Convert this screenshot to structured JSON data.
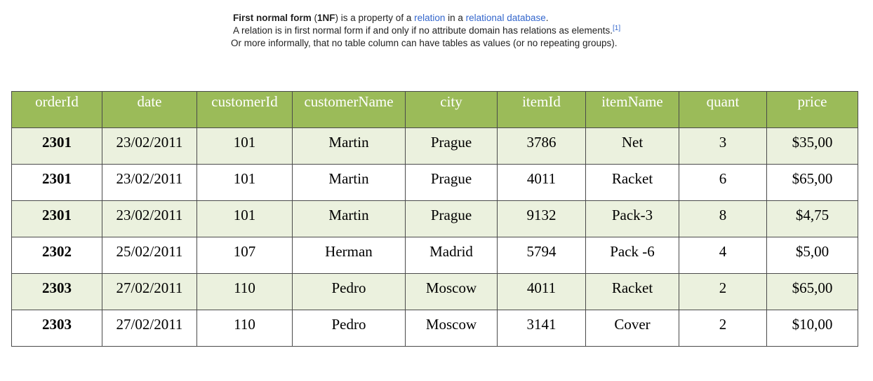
{
  "intro": {
    "line1": {
      "term": "First normal form",
      "open_paren": " (",
      "abbr": "1NF",
      "middle": ") is a property of a ",
      "link_relation": "relation",
      "in_a": " in a ",
      "link_relational_database": "relational database",
      "end": "."
    },
    "line2": {
      "text": "A relation is in first normal form if and only if no attribute domain has relations as elements.",
      "citation": "[1]"
    },
    "line3": {
      "text": "Or more informally, that no table column can have tables as values (or no repeating groups)."
    }
  },
  "table": {
    "headers": [
      "orderId",
      "date",
      "customerId",
      "customerName",
      "city",
      "itemId",
      "itemName",
      "quant",
      "price"
    ],
    "rows": [
      [
        "2301",
        "23/02/2011",
        "101",
        "Martin",
        "Prague",
        "3786",
        "Net",
        "3",
        "$35,00"
      ],
      [
        "2301",
        "23/02/2011",
        "101",
        "Martin",
        "Prague",
        "4011",
        "Racket",
        "6",
        "$65,00"
      ],
      [
        "2301",
        "23/02/2011",
        "101",
        "Martin",
        "Prague",
        "9132",
        "Pack-3",
        "8",
        "$4,75"
      ],
      [
        "2302",
        "25/02/2011",
        "107",
        "Herman",
        "Madrid",
        "5794",
        "Pack -6",
        "4",
        "$5,00"
      ],
      [
        "2303",
        "27/02/2011",
        "110",
        "Pedro",
        "Moscow",
        "4011",
        "Racket",
        "2",
        "$65,00"
      ],
      [
        "2303",
        "27/02/2011",
        "110",
        "Pedro",
        "Moscow",
        "3141",
        "Cover",
        "2",
        "$10,00"
      ]
    ]
  },
  "colors": {
    "header_bg": "#9bbb59",
    "odd_row_bg": "#ebf1de",
    "link": "#3366cc"
  }
}
